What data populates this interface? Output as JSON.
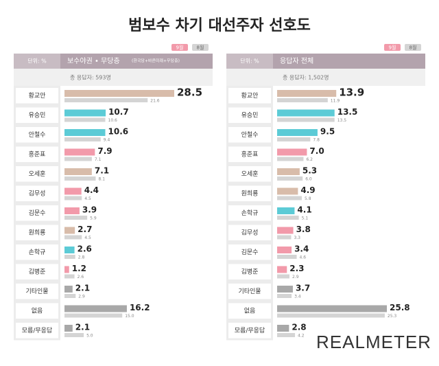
{
  "title": "범보수 차기 대선주자 선호도",
  "logo": "REALMETER",
  "chart_data": [
    {
      "type": "bar",
      "unit": "단위: %",
      "subtitle": "보수야권 • 무당층",
      "note": "(한국당+바른미래+무당층)",
      "respondents": "총 응답자: 593명",
      "categories": [
        "황교안",
        "유승민",
        "안철수",
        "홍준표",
        "오세훈",
        "김무성",
        "김문수",
        "원희룡",
        "손학규",
        "김병준",
        "기타인물",
        "없음",
        "모름/무응답"
      ],
      "series": [
        {
          "name": "9월",
          "color": "#f29aaa",
          "colors": [
            "#d8bcaa",
            "#5ccbd6",
            "#5ccbd6",
            "#f29aaa",
            "#d8bcaa",
            "#f29aaa",
            "#f29aaa",
            "#d8bcaa",
            "#5ccbd6",
            "#f29aaa",
            "#a8a8a8",
            "#a8a8a8",
            "#a8a8a8"
          ],
          "values": [
            28.5,
            10.7,
            10.6,
            7.9,
            7.1,
            4.4,
            3.9,
            2.7,
            2.6,
            1.2,
            2.1,
            16.2,
            2.1
          ],
          "value_labels": [
            "28.5",
            "10.7",
            "10.6",
            "7.9",
            "7.1",
            "4.4",
            "3.9",
            "2.7",
            "2.6",
            "1.2",
            "2.1",
            "16.2",
            "2.1"
          ]
        },
        {
          "name": "8월",
          "color": "#d4d4d4",
          "values": [
            21.6,
            10.6,
            9.4,
            7.1,
            8.1,
            4.5,
            5.9,
            4.5,
            2.8,
            2.6,
            2.9,
            15.0,
            5.0
          ],
          "value_labels": [
            "21.6",
            "10.6",
            "9.4",
            "7.1",
            "8.1",
            "4.5",
            "5.9",
            "4.5",
            "2.8",
            "2.6",
            "2.9",
            "15.0",
            "5.0"
          ]
        }
      ]
    },
    {
      "type": "bar",
      "unit": "단위: %",
      "subtitle": "응답자 전체",
      "respondents": "총 응답자: 1,502명",
      "categories": [
        "황교안",
        "유승민",
        "안철수",
        "홍준표",
        "오세훈",
        "원희룡",
        "손학규",
        "김무성",
        "김문수",
        "김병준",
        "기타인물",
        "없음",
        "모름/무응답"
      ],
      "series": [
        {
          "name": "9월",
          "color": "#f29aaa",
          "colors": [
            "#d8bcaa",
            "#5ccbd6",
            "#5ccbd6",
            "#f29aaa",
            "#d8bcaa",
            "#d8bcaa",
            "#5ccbd6",
            "#f29aaa",
            "#f29aaa",
            "#f29aaa",
            "#a8a8a8",
            "#a8a8a8",
            "#a8a8a8"
          ],
          "values": [
            13.9,
            13.5,
            9.5,
            7.0,
            5.3,
            4.9,
            4.1,
            3.8,
            3.4,
            2.3,
            3.7,
            25.8,
            2.8
          ],
          "value_labels": [
            "13.9",
            "13.5",
            "9.5",
            "7.0",
            "5.3",
            "4.9",
            "4.1",
            "3.8",
            "3.4",
            "2.3",
            "3.7",
            "25.8",
            "2.8"
          ]
        },
        {
          "name": "8월",
          "color": "#d4d4d4",
          "values": [
            11.9,
            13.5,
            7.8,
            6.2,
            6.0,
            5.8,
            5.1,
            3.3,
            4.6,
            2.9,
            3.4,
            25.3,
            4.2
          ],
          "value_labels": [
            "11.9",
            "13.5",
            "7.8",
            "6.2",
            "6.0",
            "5.8",
            "5.1",
            "3.3",
            "4.6",
            "2.9",
            "3.4",
            "25.3",
            "4.2"
          ]
        }
      ]
    }
  ]
}
